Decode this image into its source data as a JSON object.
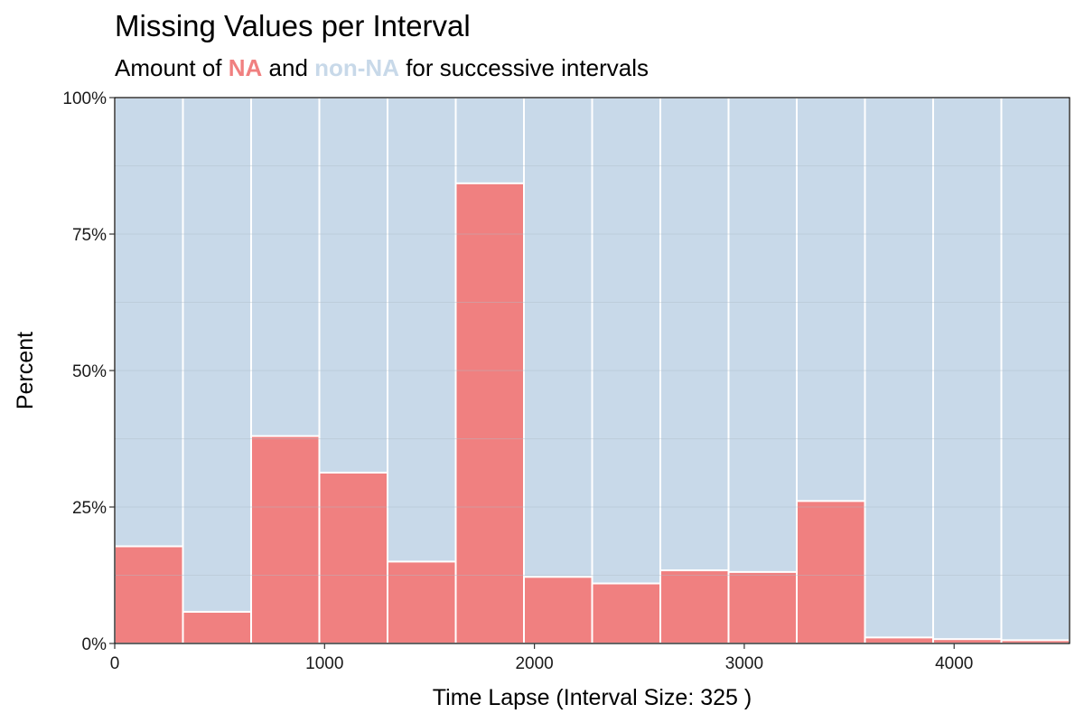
{
  "chart_data": {
    "type": "bar",
    "title": "Missing Values per Interval",
    "subtitle": {
      "prefix": "Amount of ",
      "na_label": "NA",
      "middle": " and ",
      "nonna_label": "non-NA",
      "suffix": " for successive intervals"
    },
    "xlabel": "Time Lapse (Interval Size: 325 )",
    "ylabel": "Percent",
    "interval_size": 325,
    "x_bin_starts": [
      0,
      325,
      650,
      975,
      1300,
      1625,
      1950,
      2275,
      2600,
      2925,
      3250,
      3575,
      3900,
      4225
    ],
    "x_max": 4550,
    "xlim": [
      0,
      4550
    ],
    "ylim": [
      0,
      100
    ],
    "x_ticks": [
      0,
      1000,
      2000,
      3000,
      4000
    ],
    "x_tick_labels": [
      "0",
      "1000",
      "2000",
      "3000",
      "4000"
    ],
    "y_ticks": [
      0,
      25,
      50,
      75,
      100
    ],
    "y_tick_labels": [
      "0%",
      "25%",
      "50%",
      "75%",
      "100%"
    ],
    "series": [
      {
        "name": "NA",
        "values": [
          17.8,
          5.8,
          38.0,
          31.3,
          15.0,
          84.3,
          12.2,
          11.0,
          13.4,
          13.1,
          26.1,
          1.1,
          0.8,
          0.6
        ]
      }
    ],
    "grid": true,
    "legend": "none",
    "colors": {
      "na": "#F08080",
      "nonna": "#C8D9E9",
      "border": "#ffffff",
      "grid": "#b0bec9"
    }
  }
}
